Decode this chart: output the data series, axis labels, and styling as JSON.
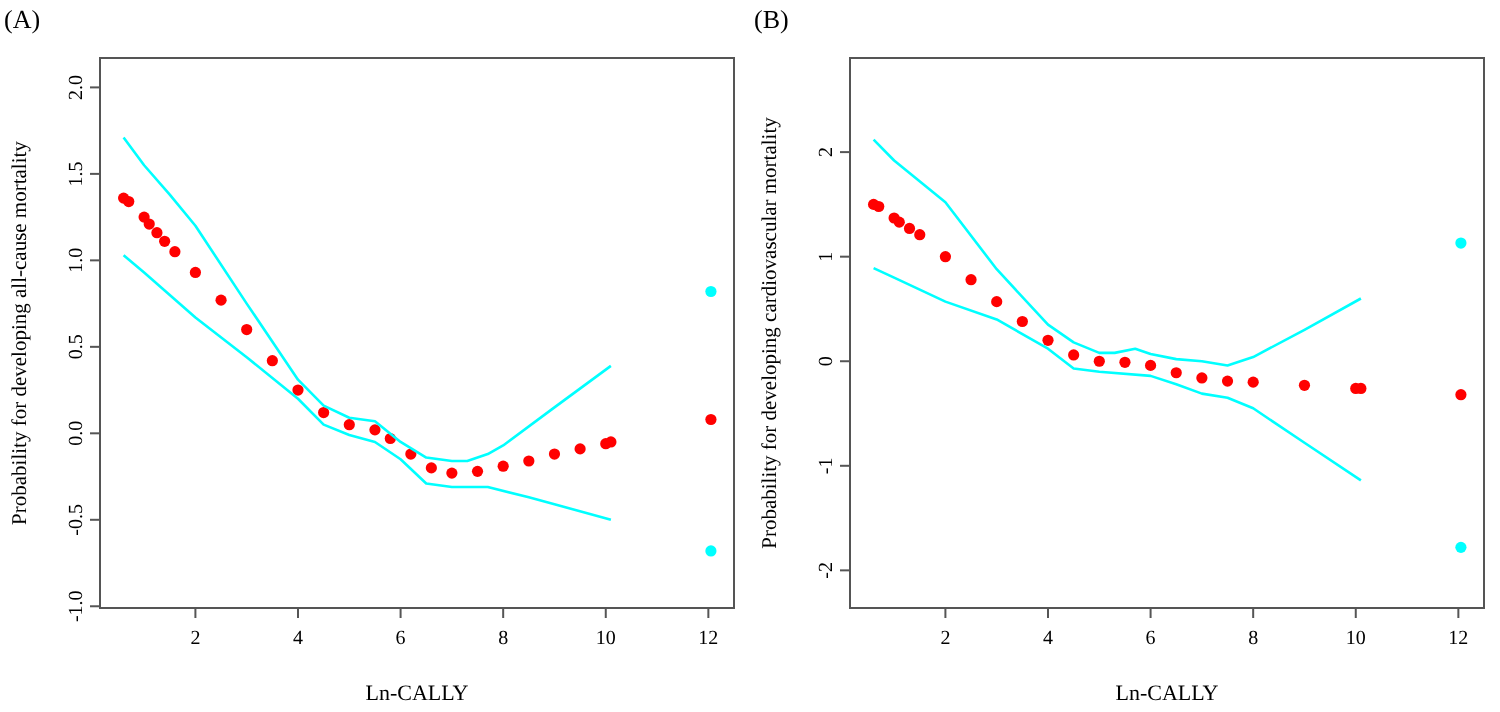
{
  "chart_data": [
    {
      "type": "scatter",
      "title": "(A)",
      "xlabel": "Ln-CALLY",
      "ylabel": "Probability for developing all-cause mortality",
      "xlim": [
        0.14,
        12.5
      ],
      "xticks": [
        2,
        4,
        6,
        8,
        10,
        12
      ],
      "ylim": [
        -1.01,
        2.17
      ],
      "yticks": [
        {
          "value": -1,
          "label": "-1.0"
        },
        {
          "value": -0.5,
          "label": "-0.5"
        },
        {
          "value": 0,
          "label": "0.0"
        },
        {
          "value": 0.5,
          "label": "0.5"
        },
        {
          "value": 1,
          "label": "1.0"
        },
        {
          "value": 1.5,
          "label": "1.5"
        },
        {
          "value": 2,
          "label": "2.0"
        }
      ],
      "series": [
        {
          "marker": "circle",
          "color": "#ff0000",
          "x": [
            0.6,
            0.7,
            1.0,
            1.1,
            1.25,
            1.4,
            1.6,
            2,
            2.5,
            3,
            3.5,
            4,
            4.5,
            5,
            5.5,
            5.8,
            6.2,
            6.6,
            7,
            7.5,
            8,
            8.5,
            9,
            9.5,
            10,
            10.1,
            12.05
          ],
          "values": [
            1.36,
            1.34,
            1.25,
            1.21,
            1.16,
            1.11,
            1.05,
            0.93,
            0.77,
            0.6,
            0.42,
            0.25,
            0.12,
            0.05,
            0.02,
            -0.03,
            -0.12,
            -0.2,
            -0.23,
            -0.22,
            -0.19,
            -0.16,
            -0.12,
            -0.09,
            -0.06,
            -0.05,
            0.08
          ]
        },
        {
          "type": "line",
          "color": "#00ffff",
          "x": [
            0.6,
            1,
            1.5,
            2,
            3,
            4,
            4.5,
            5,
            5.5,
            6,
            6.5,
            7,
            7.3,
            7.7,
            8,
            9,
            10.1
          ],
          "values": [
            1.71,
            1.55,
            1.38,
            1.2,
            0.75,
            0.31,
            0.16,
            0.09,
            0.07,
            -0.05,
            -0.14,
            -0.16,
            -0.16,
            -0.12,
            -0.07,
            0.15,
            0.39
          ]
        },
        {
          "type": "line",
          "color": "#00ffff",
          "x": [
            0.6,
            1,
            2,
            3,
            4,
            4.5,
            5,
            5.5,
            6,
            6.5,
            7,
            7.7,
            8.5,
            9,
            10.1
          ],
          "values": [
            1.03,
            0.93,
            0.67,
            0.44,
            0.2,
            0.05,
            -0.01,
            -0.05,
            -0.15,
            -0.29,
            -0.31,
            -0.31,
            -0.37,
            -0.41,
            -0.5
          ]
        },
        {
          "marker": "circle",
          "color": "#00ffff",
          "x": [
            12.05,
            12.05
          ],
          "values": [
            0.82,
            -0.68
          ]
        }
      ]
    },
    {
      "type": "scatter",
      "title": "(B)",
      "xlabel": "Ln-CALLY",
      "ylabel": "Probability for developing cardiovascular mortality",
      "xlim": [
        0.14,
        12.5
      ],
      "xticks": [
        2,
        4,
        6,
        8,
        10,
        12
      ],
      "ylim": [
        -2.36,
        2.9
      ],
      "yticks": [
        -2,
        -1,
        0,
        1,
        2
      ],
      "series": [
        {
          "marker": "circle",
          "color": "#ff0000",
          "x": [
            0.6,
            0.7,
            1.0,
            1.1,
            1.3,
            1.5,
            2,
            2.5,
            3,
            3.5,
            4,
            4.5,
            5,
            5.5,
            6,
            6.5,
            7,
            7.5,
            8,
            9,
            10,
            10.1,
            12.05
          ],
          "values": [
            1.5,
            1.48,
            1.37,
            1.33,
            1.27,
            1.21,
            1.0,
            0.78,
            0.57,
            0.38,
            0.2,
            0.06,
            0.0,
            -0.01,
            -0.04,
            -0.11,
            -0.16,
            -0.19,
            -0.2,
            -0.23,
            -0.26,
            -0.26,
            -0.32
          ]
        },
        {
          "type": "line",
          "color": "#00ffff",
          "x": [
            0.6,
            1,
            2,
            3,
            4,
            4.5,
            5,
            5.3,
            5.7,
            6,
            6.5,
            7,
            7.5,
            8,
            9,
            10.1
          ],
          "values": [
            2.12,
            1.92,
            1.52,
            0.88,
            0.35,
            0.18,
            0.08,
            0.08,
            0.12,
            0.07,
            0.02,
            0.0,
            -0.04,
            0.04,
            0.3,
            0.6
          ]
        },
        {
          "type": "line",
          "color": "#00ffff",
          "x": [
            0.6,
            1,
            2,
            3,
            4,
            4.5,
            5,
            6,
            6.5,
            7,
            7.5,
            8,
            9,
            10.1
          ],
          "values": [
            0.89,
            0.8,
            0.57,
            0.4,
            0.12,
            -0.07,
            -0.1,
            -0.14,
            -0.22,
            -0.31,
            -0.35,
            -0.45,
            -0.78,
            -1.14
          ]
        },
        {
          "marker": "circle",
          "color": "#00ffff",
          "x": [
            12.05,
            12.05
          ],
          "values": [
            1.13,
            -1.78
          ]
        }
      ]
    }
  ]
}
